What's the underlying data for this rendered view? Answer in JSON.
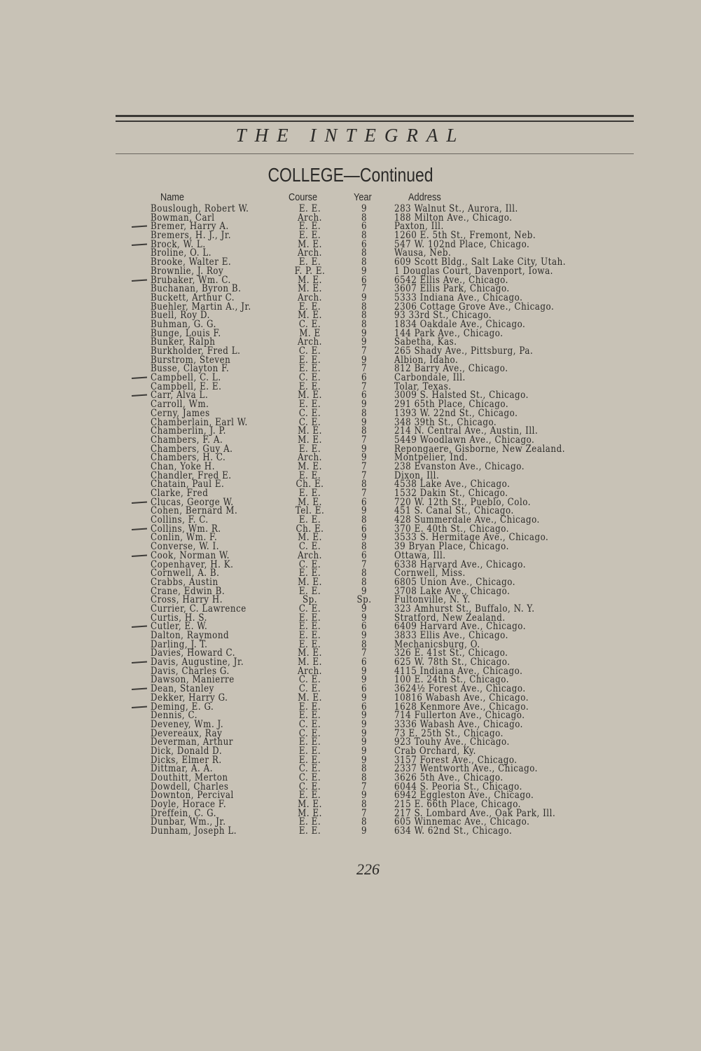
{
  "running_title": "THE INTEGRAL",
  "section_title": "COLLEGE—Continued",
  "columns": {
    "name": "Name",
    "course": "Course",
    "year": "Year",
    "address": "Address"
  },
  "rows": [
    {
      "name": "Bouslough, Robert W.",
      "course": "E. E.",
      "year": "9",
      "address": "283 Walnut St., Aurora, Ill.",
      "check_mark": false
    },
    {
      "name": "Bowman, Carl",
      "course": "Arch.",
      "year": "8",
      "address": "188 Milton Ave., Chicago.",
      "check_mark": false
    },
    {
      "name": "Bremer, Harry A.",
      "course": "E. E.",
      "year": "6",
      "address": "Paxton, Ill.",
      "check_mark": true
    },
    {
      "name": "Bremers, H. J., Jr.",
      "course": "E. E.",
      "year": "8",
      "address": "1260 E. 5th St., Fremont, Neb.",
      "check_mark": false
    },
    {
      "name": "Brock, W. L.",
      "course": "M. E.",
      "year": "6",
      "address": "547 W. 102nd Place, Chicago.",
      "check_mark": true
    },
    {
      "name": "Broline, O. L.",
      "course": "Arch.",
      "year": "8",
      "address": "Wausa, Neb.",
      "check_mark": false
    },
    {
      "name": "Brooke, Walter E.",
      "course": "E. E.",
      "year": "8",
      "address": "609 Scott Bldg., Salt Lake City, Utah.",
      "check_mark": false
    },
    {
      "name": "Brownlie, J. Roy",
      "course": "F. P. E.",
      "year": "9",
      "address": "1 Douglas Court, Davenport, Iowa.",
      "check_mark": false
    },
    {
      "name": "Brubaker, Wm. C.",
      "course": "M. E.",
      "year": "6",
      "address": "6542 Ellis Ave., Chicago.",
      "check_mark": true
    },
    {
      "name": "Buchanan, Byron B.",
      "course": "M. E.",
      "year": "7",
      "address": "3607 Ellis Park, Chicago.",
      "check_mark": false
    },
    {
      "name": "Buckett, Arthur C.",
      "course": "Arch.",
      "year": "9",
      "address": "5333 Indiana Ave., Chicago.",
      "check_mark": false
    },
    {
      "name": "Buehler, Martin A., Jr.",
      "course": "E. E.",
      "year": "8",
      "address": "2306 Cottage Grove Ave., Chicago.",
      "check_mark": false
    },
    {
      "name": "Buell, Roy D.",
      "course": "M. E.",
      "year": "8",
      "address": "93 33rd St., Chicago.",
      "check_mark": false
    },
    {
      "name": "Buhman, G. G.",
      "course": "C. E.",
      "year": "8",
      "address": "1834 Oakdale Ave., Chicago.",
      "check_mark": false
    },
    {
      "name": "Bunge, Louis F.",
      "course": "M. E",
      "year": "9",
      "address": "144 Park Ave., Chicago.",
      "check_mark": false
    },
    {
      "name": "Bunker, Ralph",
      "course": "Arch.",
      "year": "9",
      "address": "Sabetha, Kas.",
      "check_mark": false
    },
    {
      "name": "Burkholder, Fred L.",
      "course": "C. E.",
      "year": "7",
      "address": "265 Shady Ave., Pittsburg, Pa.",
      "check_mark": false
    },
    {
      "name": "Burstrom, Steven",
      "course": "E. E.",
      "year": "9",
      "address": "Albion, Idaho.",
      "check_mark": false
    },
    {
      "name": "Busse, Clayton F.",
      "course": "E. E.",
      "year": "7",
      "address": "812 Barry Ave., Chicago.",
      "check_mark": false
    },
    {
      "name": "Campbell, C. L.",
      "course": "C. E.",
      "year": "6",
      "address": "Carbondale, Ill.",
      "check_mark": true
    },
    {
      "name": "Campbell, E. E.",
      "course": "E. E.",
      "year": "7",
      "address": "Tolar, Texas.",
      "check_mark": false
    },
    {
      "name": "Carr, Alva L.",
      "course": "M. E.",
      "year": "6",
      "address": "3009 S. Halsted St., Chicago.",
      "check_mark": true
    },
    {
      "name": "Carroll, Wm.",
      "course": "E. E.",
      "year": "9",
      "address": "291 65th Place, Chicago.",
      "check_mark": false
    },
    {
      "name": "Cerny, James",
      "course": "C. E.",
      "year": "8",
      "address": "1393 W. 22nd St., Chicago.",
      "check_mark": false
    },
    {
      "name": "Chamberlain, Earl W.",
      "course": "C. E.",
      "year": "9",
      "address": "348 39th St., Chicago.",
      "check_mark": false
    },
    {
      "name": "Chamberlin, J. P.",
      "course": "M. E.",
      "year": "8",
      "address": "214 N. Central Ave., Austin, Ill.",
      "check_mark": false
    },
    {
      "name": "Chambers, F. A.",
      "course": "M. E.",
      "year": "7",
      "address": "5449 Woodlawn Ave., Chicago.",
      "check_mark": false
    },
    {
      "name": "Chambers, Guy A.",
      "course": "E. E.",
      "year": "9",
      "address": "Repongaere, Gisborne, New Zealand.",
      "check_mark": false
    },
    {
      "name": "Chambers, H. C.",
      "course": "Arch.",
      "year": "9",
      "address": "Montpelier, Ind.",
      "check_mark": false
    },
    {
      "name": "Chan, Yoke H.",
      "course": "M. E.",
      "year": "7",
      "address": "238 Evanston Ave., Chicago.",
      "check_mark": false
    },
    {
      "name": "Chandler, Fred E.",
      "course": "E. E.",
      "year": "7",
      "address": "Dixon, Ill.",
      "check_mark": false
    },
    {
      "name": "Chatain, Paul E.",
      "course": "Ch. E.",
      "year": "8",
      "address": "4538 Lake Ave., Chicago.",
      "check_mark": false
    },
    {
      "name": "Clarke, Fred",
      "course": "E. E.",
      "year": "7",
      "address": "1532 Dakin St., Chicago.",
      "check_mark": false
    },
    {
      "name": "Clucas, George W.",
      "course": "M. E.",
      "year": "6",
      "address": "720 W. 12th St., Pueblo, Colo.",
      "check_mark": true
    },
    {
      "name": "Cohen, Bernard M.",
      "course": "Tel. E.",
      "year": "9",
      "address": "451 S. Canal St., Chicago.",
      "check_mark": false
    },
    {
      "name": "Collins, F. C.",
      "course": "E. E.",
      "year": "8",
      "address": "428 Summerdale Ave., Chicago.",
      "check_mark": false
    },
    {
      "name": "Collins, Wm. R.",
      "course": "Ch. E.",
      "year": "6",
      "address": "370 E. 40th St., Chicago.",
      "check_mark": true
    },
    {
      "name": "Conlin, Wm. F.",
      "course": "M. E.",
      "year": "9",
      "address": "3533 S. Hermitage Ave., Chicago.",
      "check_mark": false
    },
    {
      "name": "Converse, W. I.",
      "course": "C. E.",
      "year": "8",
      "address": "39 Bryan Place, Chicago.",
      "check_mark": false
    },
    {
      "name": "Cook, Norman W.",
      "course": "Arch.",
      "year": "6",
      "address": "Ottawa, Ill.",
      "check_mark": true
    },
    {
      "name": "Copenhaver, H. K.",
      "course": "C. E.",
      "year": "7",
      "address": "6338 Harvard Ave., Chicago.",
      "check_mark": false
    },
    {
      "name": "Cornwell, A. B.",
      "course": "E. E.",
      "year": "8",
      "address": "Cornwell, Miss.",
      "check_mark": false
    },
    {
      "name": "Crabbs, Austin",
      "course": "M. E.",
      "year": "8",
      "address": "6805 Union Ave., Chicago.",
      "check_mark": false
    },
    {
      "name": "Crane, Edwin B.",
      "course": "E. E.",
      "year": "9",
      "address": "3708 Lake Ave., Chicago.",
      "check_mark": false
    },
    {
      "name": "Cross, Harry H.",
      "course": "Sp.",
      "year": "Sp.",
      "address": "Fultonville, N. Y.",
      "check_mark": false
    },
    {
      "name": "Currier, C. Lawrence",
      "course": "C. E.",
      "year": "9",
      "address": "323 Amhurst St., Buffalo, N. Y.",
      "check_mark": false
    },
    {
      "name": "Curtis, H. S.",
      "course": "E. E.",
      "year": "9",
      "address": "Stratford, New Zealand.",
      "check_mark": false
    },
    {
      "name": "Cutler, E. W.",
      "course": "E. E.",
      "year": "6",
      "address": "6409 Harvard Ave., Chicago.",
      "check_mark": true
    },
    {
      "name": "Dalton, Raymond",
      "course": "E. E.",
      "year": "9",
      "address": "3833 Ellis Ave., Chicago.",
      "check_mark": false
    },
    {
      "name": "Darling, J. T.",
      "course": "E. E.",
      "year": "8",
      "address": "Mechanicsburg, O.",
      "check_mark": false
    },
    {
      "name": "Davies, Howard C.",
      "course": "M. E.",
      "year": "7",
      "address": "326 E. 41st St., Chicago.",
      "check_mark": false
    },
    {
      "name": "Davis, Augustine, Jr.",
      "course": "M. E.",
      "year": "6",
      "address": "625 W. 78th St., Chicago.",
      "check_mark": true
    },
    {
      "name": "Davis, Charles G.",
      "course": "Arch.",
      "year": "9",
      "address": "4115 Indiana Ave., Chicago.",
      "check_mark": false
    },
    {
      "name": "Dawson, Manierre",
      "course": "C. E.",
      "year": "9",
      "address": "100 E. 24th St., Chicago.",
      "check_mark": false
    },
    {
      "name": "Dean, Stanley",
      "course": "C. E.",
      "year": "6",
      "address": "3624½ Forest Ave., Chicago.",
      "check_mark": true
    },
    {
      "name": "Dekker, Harry G.",
      "course": "M. E.",
      "year": "9",
      "address": "10816 Wabash Ave., Chicago.",
      "check_mark": false
    },
    {
      "name": "Deming, E. G.",
      "course": "E. E.",
      "year": "6",
      "address": "1628 Kenmore Ave., Chicago.",
      "check_mark": true
    },
    {
      "name": "Dennis, C.",
      "course": "E. E.",
      "year": "9",
      "address": "714 Fullerton Ave., Chicago.",
      "check_mark": false
    },
    {
      "name": "Deveney, Wm. J.",
      "course": "C. E.",
      "year": "9",
      "address": "3336 Wabash Ave., Chicago.",
      "check_mark": false
    },
    {
      "name": "Devereaux, Ray",
      "course": "C. E.",
      "year": "9",
      "address": "73 E. 25th St., Chicago.",
      "check_mark": false
    },
    {
      "name": "Deverman, Arthur",
      "course": "E. E.",
      "year": "9",
      "address": "923 Touhy Ave., Chicago.",
      "check_mark": false
    },
    {
      "name": "Dick, Donald D.",
      "course": "E. E.",
      "year": "9",
      "address": "Crab Orchard, Ky.",
      "check_mark": false
    },
    {
      "name": "Dicks, Elmer R.",
      "course": "E. E.",
      "year": "9",
      "address": "3157 Forest Ave., Chicago.",
      "check_mark": false
    },
    {
      "name": "Dittmar, A. A.",
      "course": "C. E.",
      "year": "8",
      "address": "2337 Wentworth Ave., Chicago.",
      "check_mark": false
    },
    {
      "name": "Douthitt, Merton",
      "course": "C. E.",
      "year": "8",
      "address": "3626 5th Ave., Chicago.",
      "check_mark": false
    },
    {
      "name": "Dowdell, Charles",
      "course": "C. E.",
      "year": "7",
      "address": "6044 S. Peoria St., Chicago.",
      "check_mark": false
    },
    {
      "name": "Downton, Percival",
      "course": "E. E.",
      "year": "9",
      "address": "6942 Eggleston Ave., Chicago.",
      "check_mark": false
    },
    {
      "name": "Doyle, Horace F.",
      "course": "M. E.",
      "year": "8",
      "address": "215 E. 66th Place, Chicago.",
      "check_mark": false
    },
    {
      "name": "Dreffein, C. G.",
      "course": "M. E.",
      "year": "7",
      "address": "217 S. Lombard Ave., Oak Park, Ill.",
      "check_mark": false
    },
    {
      "name": "Dunbar, Wm., Jr.",
      "course": "E. E.",
      "year": "8",
      "address": "605 Winnemac Ave., Chicago.",
      "check_mark": false
    },
    {
      "name": "Dunham, Joseph L.",
      "course": "E. E.",
      "year": "9",
      "address": "634 W. 62nd St., Chicago.",
      "check_mark": false
    }
  ],
  "page_number": "226"
}
